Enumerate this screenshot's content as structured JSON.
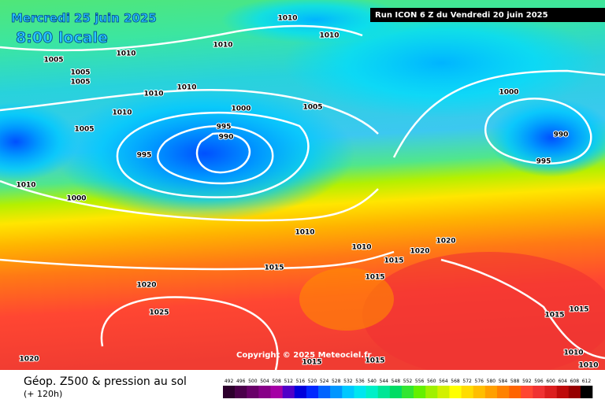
{
  "header": {
    "date": "Mercredi 25 juin 2025",
    "time": "8:00 locale",
    "run": "Run ICON 6 Z du Vendredi 20 juin 2025"
  },
  "copyright": "Copyright © 2025 Meteociel.fr",
  "footer": {
    "title": "Géop. Z500 & pression au sol",
    "lead": "(+ 120h)"
  },
  "isobar_labels": [
    1010,
    1010,
    1005,
    1005,
    1005,
    1010,
    1010,
    1010,
    1010,
    1010,
    1005,
    1000,
    1005,
    995,
    990,
    995,
    1010,
    1000,
    1000,
    990,
    995,
    1010,
    1010,
    1015,
    1015,
    1020,
    1020,
    1020,
    1015,
    1025,
    1020,
    1015,
    1015,
    1010,
    1010,
    1015,
    1015
  ],
  "colorbar": {
    "levels": [
      492,
      496,
      500,
      504,
      508,
      512,
      516,
      520,
      524,
      528,
      532,
      536,
      540,
      544,
      548,
      552,
      556,
      560,
      564,
      568,
      572,
      576,
      580,
      584,
      588,
      592,
      596,
      600,
      604,
      608,
      612
    ],
    "colors": [
      "#2d002d",
      "#4b004b",
      "#690069",
      "#870087",
      "#a500a5",
      "#5000c8",
      "#0000dc",
      "#0028ff",
      "#0064ff",
      "#0096ff",
      "#00c8ff",
      "#00e6f0",
      "#00f0c8",
      "#00e696",
      "#00dc64",
      "#32e632",
      "#64f000",
      "#a0f000",
      "#d2f000",
      "#ffff00",
      "#ffdc00",
      "#ffbe00",
      "#ffa000",
      "#ff8200",
      "#ff6400",
      "#ff4632",
      "#f03232",
      "#dc1e1e",
      "#be0a0a",
      "#960000",
      "#000000"
    ]
  }
}
